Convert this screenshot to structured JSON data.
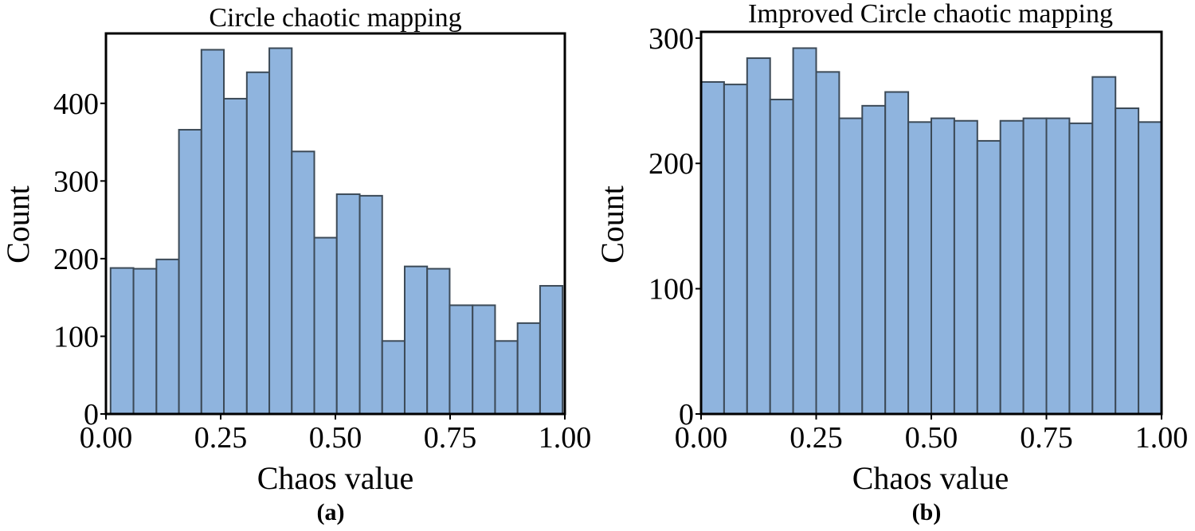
{
  "chart_data": [
    {
      "type": "bar",
      "panel": "(a)",
      "title": "Circle chaotic mapping",
      "xlabel": "Chaos value",
      "ylabel": "Count",
      "xlim": [
        0.0,
        1.0
      ],
      "ylim": [
        0,
        490
      ],
      "xticks": [
        "0.00",
        "0.25",
        "0.50",
        "0.75",
        "1.00"
      ],
      "yticks": [
        0,
        100,
        200,
        300,
        400
      ],
      "bin_edges": [
        0.01,
        0.06,
        0.11,
        0.159,
        0.208,
        0.257,
        0.307,
        0.356,
        0.405,
        0.454,
        0.503,
        0.553,
        0.602,
        0.651,
        0.7,
        0.749,
        0.799,
        0.848,
        0.897,
        0.946,
        0.995
      ],
      "values": [
        188,
        187,
        199,
        366,
        469,
        406,
        440,
        471,
        338,
        227,
        283,
        281,
        94,
        190,
        187,
        140,
        140,
        94,
        117,
        165
      ],
      "grid": false,
      "legend": "none"
    },
    {
      "type": "bar",
      "panel": "(b)",
      "title": "Improved Circle chaotic mapping",
      "xlabel": "Chaos value",
      "ylabel": "Count",
      "xlim": [
        0.0,
        1.0
      ],
      "ylim": [
        0,
        305
      ],
      "xticks": [
        "0.00",
        "0.25",
        "0.50",
        "0.75",
        "1.00"
      ],
      "yticks": [
        0,
        100,
        200,
        300
      ],
      "bin_edges": [
        0.0,
        0.05,
        0.1,
        0.15,
        0.2,
        0.25,
        0.3,
        0.35,
        0.4,
        0.45,
        0.5,
        0.55,
        0.6,
        0.65,
        0.7,
        0.75,
        0.8,
        0.85,
        0.9,
        0.95,
        1.0
      ],
      "values": [
        265,
        263,
        284,
        251,
        292,
        273,
        236,
        246,
        257,
        233,
        236,
        234,
        218,
        234,
        236,
        236,
        232,
        269,
        244,
        233
      ],
      "grid": false,
      "legend": "none"
    }
  ]
}
